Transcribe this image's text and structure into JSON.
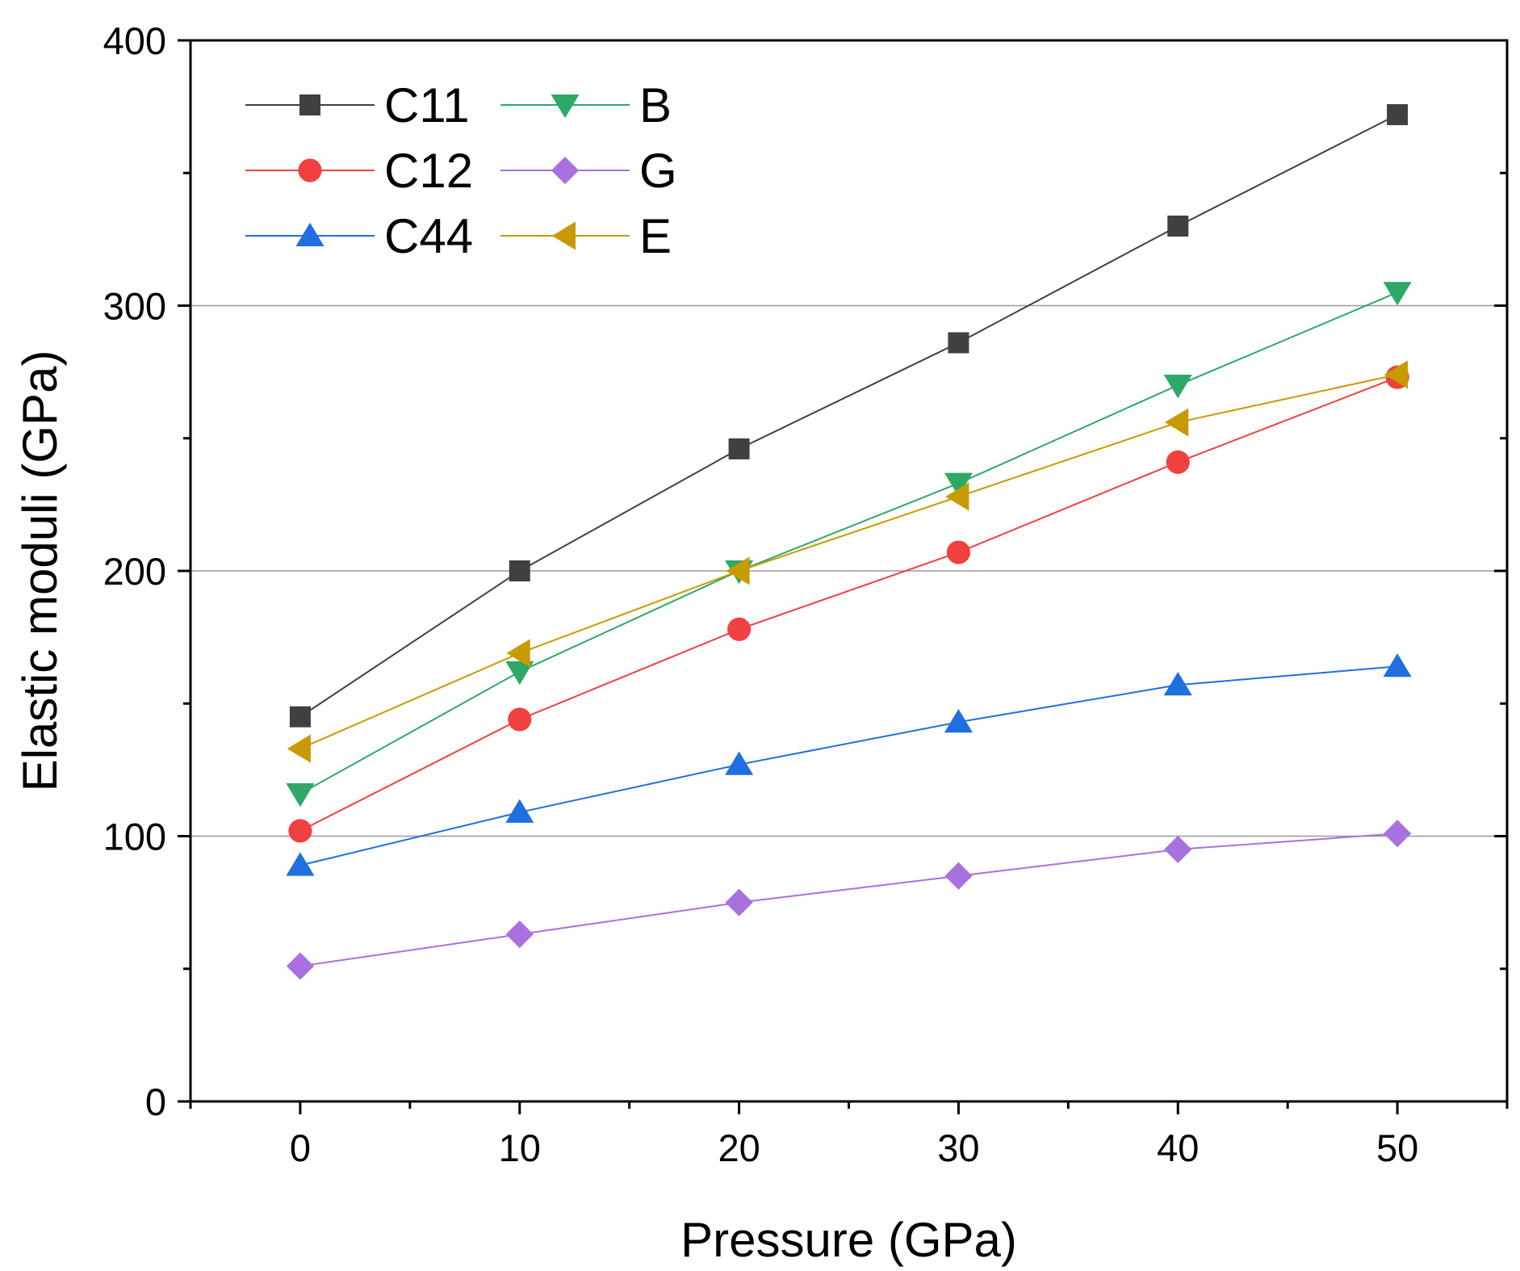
{
  "chart_data": {
    "type": "line",
    "title": "",
    "xlabel": "Pressure (GPa)",
    "ylabel": "Elastic moduli (GPa)",
    "xlim": [
      -5,
      55
    ],
    "ylim": [
      0,
      400
    ],
    "x_ticks": [
      0,
      10,
      20,
      30,
      40,
      50
    ],
    "y_ticks": [
      0,
      100,
      200,
      300,
      400
    ],
    "gridlines_y": [
      100,
      200,
      300
    ],
    "legend_position": "top-left",
    "x": [
      0,
      10,
      20,
      30,
      40,
      50
    ],
    "series": [
      {
        "name": "C11",
        "color": "#404040",
        "marker": "square",
        "values": [
          145,
          200,
          246,
          286,
          330,
          372
        ]
      },
      {
        "name": "C12",
        "color": "#f04040",
        "marker": "circle",
        "values": [
          102,
          144,
          178,
          207,
          241,
          273
        ]
      },
      {
        "name": "C44",
        "color": "#1f6fe0",
        "marker": "triangle-up",
        "values": [
          89,
          109,
          127,
          143,
          157,
          164
        ]
      },
      {
        "name": "B",
        "color": "#2ea866",
        "marker": "triangle-down",
        "values": [
          116,
          162,
          200,
          233,
          270,
          305
        ]
      },
      {
        "name": "G",
        "color": "#a970e0",
        "marker": "diamond",
        "values": [
          51,
          63,
          75,
          85,
          95,
          101
        ]
      },
      {
        "name": "E",
        "color": "#c99a00",
        "marker": "triangle-left",
        "values": [
          133,
          169,
          200,
          228,
          256,
          274
        ]
      }
    ]
  }
}
